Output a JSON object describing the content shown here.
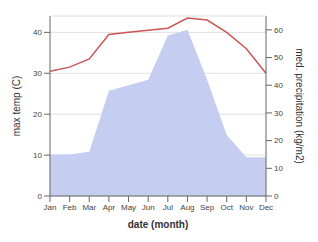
{
  "chart_data": {
    "type": "line",
    "xlabel": "date (month)",
    "ylabel": "max temp (C)",
    "y2label": "med. precipitation (kg/m2)",
    "categories": [
      "Jan",
      "Feb",
      "Mar",
      "Apr",
      "May",
      "Jun",
      "Jul",
      "Aug",
      "Sep",
      "Oct",
      "Nov",
      "Dec"
    ],
    "series": [
      {
        "type": "area",
        "axis": "y2",
        "color": "#c5cef0",
        "values": [
          15,
          15,
          16,
          38,
          40,
          42,
          58,
          60,
          42,
          22,
          14,
          14
        ]
      },
      {
        "type": "line",
        "color": "#cd5555",
        "values": [
          30.5,
          31.5,
          33.5,
          39.5,
          40.0,
          40.5,
          41.0,
          43.5,
          43.0,
          40.0,
          36.0,
          30.0
        ]
      }
    ],
    "ylim": [
      0,
      44
    ],
    "yticks": [
      0,
      10,
      20,
      30,
      40
    ],
    "y2lim": [
      0,
      65
    ],
    "y2ticks": [
      0,
      10,
      20,
      30,
      40,
      50,
      60
    ],
    "grid": true
  }
}
